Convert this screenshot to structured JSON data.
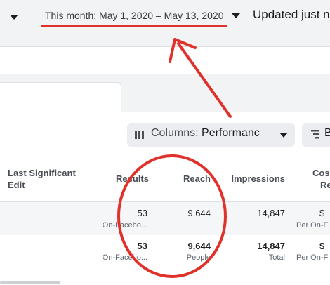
{
  "toolbar": {
    "date_range": "This month: May 1, 2020 – May 13, 2020",
    "updated": "Updated just n"
  },
  "columns": {
    "prefix": "Columns: ",
    "value": "Performanc"
  },
  "breakdown": {
    "label": "B"
  },
  "table": {
    "headers": {
      "last_significant_edit": [
        "Last Significant",
        "Edit"
      ],
      "results": "Results",
      "reach": "Reach",
      "impressions": "Impressions",
      "cost": [
        "Cos",
        "Re"
      ]
    },
    "rows": [
      {
        "edit": "",
        "results": "53",
        "results_sub": "On-Facebo...",
        "reach": "9,644",
        "reach_sub": "",
        "impressions": "14,847",
        "impressions_sub": "",
        "cost": "$",
        "cost_sub": "Per On-F"
      },
      {
        "edit": "—",
        "results": "53",
        "results_sub": "On-Facebo...",
        "reach": "9,644",
        "reach_sub": "People",
        "impressions": "14,847",
        "impressions_sub": "Total",
        "cost": "$",
        "cost_sub": "Per On-F"
      }
    ]
  },
  "annotation": {
    "color": "#e0322b"
  }
}
